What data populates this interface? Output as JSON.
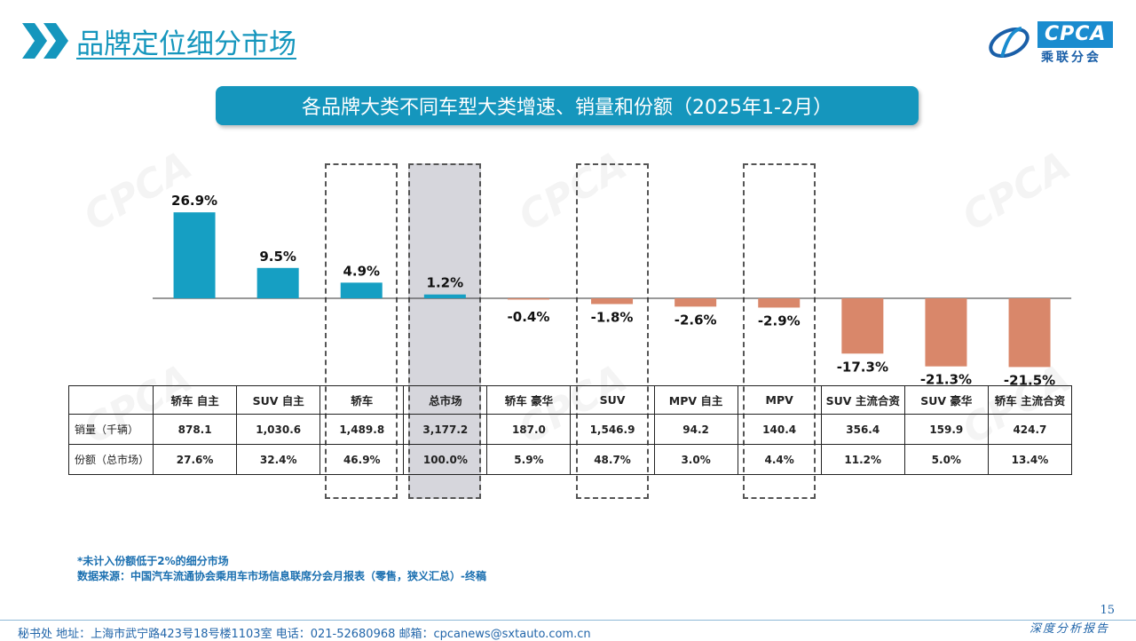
{
  "header": {
    "title": "品牌定位细分市场",
    "logo_text": "CPCA",
    "logo_sub": "乘联分会"
  },
  "chart_title": "各品牌大类不同车型大类增速、销量和份额（2025年1-2月）",
  "chart_data": {
    "type": "bar",
    "categories": [
      "轿车 自主",
      "SUV 自主",
      "轿车",
      "总市场",
      "轿车 豪华",
      "SUV",
      "MPV 自主",
      "MPV",
      "SUV 主流合资",
      "SUV 豪华",
      "轿车 主流合资"
    ],
    "values": [
      26.9,
      9.5,
      4.9,
      1.2,
      -0.4,
      -1.8,
      -2.6,
      -2.9,
      -17.3,
      -21.3,
      -21.5
    ],
    "value_labels": [
      "26.9%",
      "9.5%",
      "4.9%",
      "1.2%",
      "-0.4%",
      "-1.8%",
      "-2.6%",
      "-2.9%",
      "-17.3%",
      "-21.3%",
      "-21.5%"
    ],
    "unit": "%",
    "ylim": [
      -24,
      30
    ],
    "colors": {
      "positive": "#169fc3",
      "negative": "#d9876a"
    },
    "highlighted_categories": [
      "轿车",
      "总市场",
      "SUV",
      "MPV"
    ],
    "filled_highlight": "总市场"
  },
  "table": {
    "rows": [
      {
        "label": "销量（千辆）",
        "values": [
          "878.1",
          "1,030.6",
          "1,489.8",
          "3,177.2",
          "187.0",
          "1,546.9",
          "94.2",
          "140.4",
          "356.4",
          "159.9",
          "424.7"
        ]
      },
      {
        "label": "份额（总市场）",
        "values": [
          "27.6%",
          "32.4%",
          "46.9%",
          "100.0%",
          "5.9%",
          "48.7%",
          "3.0%",
          "4.4%",
          "11.2%",
          "5.0%",
          "13.4%"
        ]
      }
    ]
  },
  "notes": {
    "line1": "*未计入份额低于2%的细分市场",
    "line2": "数据来源：中国汽车流通协会乘用车市场信息联席分会月报表（零售，狭义汇总）-终稿"
  },
  "footer": {
    "left": "秘书处   地址：上海市武宁路423号18号楼1103室  电话：021-52680968   邮箱：cpcanews@sxtauto.com.cn",
    "right": "深度分析报告",
    "page": "15"
  }
}
